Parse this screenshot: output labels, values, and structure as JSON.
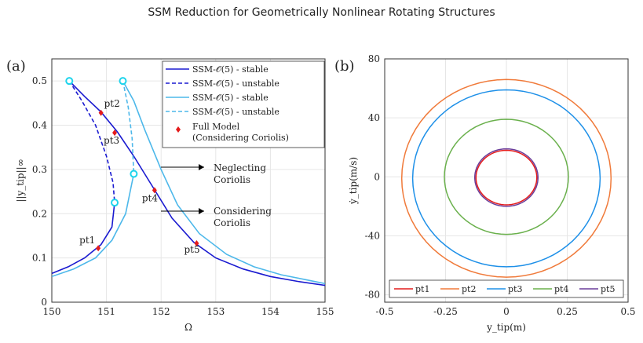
{
  "page": {
    "title": "SSM Reduction for Geometrically Nonlinear Rotating Structures"
  },
  "panel_a_label": "(a)",
  "panel_b_label": "(b)",
  "annotations": {
    "neglect_1": "Neglecting",
    "neglect_2": "Coriolis",
    "consider_1": "Considering",
    "consider_2": "Coriolis"
  },
  "colors": {
    "dark_blue": "#1a1ad0",
    "light_blue": "#4db8ea",
    "red": "#e41b1b",
    "orange": "#f07a3a",
    "blue": "#1e90e8",
    "green": "#6ab04c",
    "purple": "#6a3d9a",
    "cyan": "#1ed4ec",
    "grid": "#e6e6e6"
  },
  "chart_data": [
    {
      "type": "line",
      "xlabel": "Ω",
      "ylabel": "||y_tip||∞",
      "xlim": [
        150,
        155
      ],
      "ylim": [
        0,
        0.55
      ],
      "xticks": [
        "150",
        "151",
        "152",
        "153",
        "154",
        "155"
      ],
      "yticks": [
        "0",
        "0.1",
        "0.2",
        "0.3",
        "0.4",
        "0.5"
      ],
      "grid": true,
      "legend_position": "top-right",
      "legend": [
        {
          "label": "SSM-𝒪(5) - stable",
          "style": "solid",
          "color": "#1a1ad0"
        },
        {
          "label": "SSM-𝒪(5) - unstable",
          "style": "dashed",
          "color": "#1a1ad0"
        },
        {
          "label": "SSM-𝒪(5) - stable",
          "style": "solid",
          "color": "#4db8ea"
        },
        {
          "label": "SSM-𝒪(5) - unstable",
          "style": "dashed",
          "color": "#4db8ea"
        },
        {
          "label": "Full Model",
          "label2": "(Considering Coriolis)",
          "style": "marker",
          "color": "#e41b1b"
        }
      ],
      "series": [
        {
          "style": "solid",
          "color": "#1a1ad0",
          "x": [
            150.0,
            150.3,
            150.6,
            150.9,
            151.1,
            151.15
          ],
          "y": [
            0.065,
            0.08,
            0.1,
            0.13,
            0.17,
            0.225
          ]
        },
        {
          "style": "solid",
          "color": "#1a1ad0",
          "x": [
            150.32,
            150.6,
            150.9,
            151.2,
            151.5,
            151.85,
            152.2,
            152.6,
            153.0,
            153.5,
            154.0,
            154.5,
            155.0
          ],
          "y": [
            0.5,
            0.465,
            0.43,
            0.385,
            0.33,
            0.26,
            0.19,
            0.135,
            0.1,
            0.075,
            0.058,
            0.047,
            0.038
          ]
        },
        {
          "style": "dashed",
          "color": "#1a1ad0",
          "x": [
            150.32,
            150.55,
            150.8,
            151.0,
            151.12,
            151.15
          ],
          "y": [
            0.5,
            0.455,
            0.4,
            0.33,
            0.27,
            0.225
          ]
        },
        {
          "style": "solid",
          "color": "#4db8ea",
          "x": [
            150.0,
            150.4,
            150.8,
            151.1,
            151.35,
            151.5
          ],
          "y": [
            0.058,
            0.075,
            0.1,
            0.14,
            0.2,
            0.29
          ]
        },
        {
          "style": "solid",
          "color": "#4db8ea",
          "x": [
            151.3,
            151.5,
            151.7,
            152.0,
            152.3,
            152.7,
            153.2,
            153.7,
            154.2,
            154.6,
            155.0
          ],
          "y": [
            0.5,
            0.455,
            0.39,
            0.3,
            0.22,
            0.155,
            0.108,
            0.08,
            0.062,
            0.052,
            0.042
          ]
        },
        {
          "style": "dashed",
          "color": "#4db8ea",
          "x": [
            151.3,
            151.4,
            151.47,
            151.5
          ],
          "y": [
            0.5,
            0.44,
            0.37,
            0.29
          ]
        }
      ],
      "markers": [
        {
          "label": "pt1",
          "x": 150.85,
          "y": 0.122
        },
        {
          "label": "pt2",
          "x": 150.9,
          "y": 0.428
        },
        {
          "label": "pt3",
          "x": 151.15,
          "y": 0.383
        },
        {
          "label": "pt4",
          "x": 151.88,
          "y": 0.253
        },
        {
          "label": "pt5",
          "x": 152.65,
          "y": 0.133
        }
      ],
      "endpoints": [
        {
          "x": 150.32,
          "y": 0.5
        },
        {
          "x": 151.15,
          "y": 0.225
        },
        {
          "x": 151.3,
          "y": 0.5
        },
        {
          "x": 151.5,
          "y": 0.29
        }
      ]
    },
    {
      "type": "line",
      "xlabel": "y_tip(m)",
      "ylabel": "ẏ_tip(m/s)",
      "xlim": [
        -0.5,
        0.5
      ],
      "ylim": [
        -85,
        80
      ],
      "xticks": [
        "-0.5",
        "-0.25",
        "0",
        "0.25",
        "0.5"
      ],
      "yticks": [
        "-80",
        "-40",
        "0",
        "40",
        "80"
      ],
      "grid": true,
      "legend_position": "bottom",
      "series": [
        {
          "name": "pt1",
          "color": "#e41b1b",
          "amp_x": 0.125,
          "amp_y": 18.5,
          "offset_y": -0.5
        },
        {
          "name": "pt2",
          "color": "#f07a3a",
          "amp_x": 0.43,
          "amp_y": 67,
          "offset_y": -1
        },
        {
          "name": "pt3",
          "color": "#1e90e8",
          "amp_x": 0.385,
          "amp_y": 60,
          "offset_y": -1
        },
        {
          "name": "pt4",
          "color": "#6ab04c",
          "amp_x": 0.255,
          "amp_y": 39,
          "offset_y": 0
        },
        {
          "name": "pt5",
          "color": "#6a3d9a",
          "amp_x": 0.13,
          "amp_y": 19.5,
          "offset_y": -0.5
        }
      ]
    }
  ]
}
